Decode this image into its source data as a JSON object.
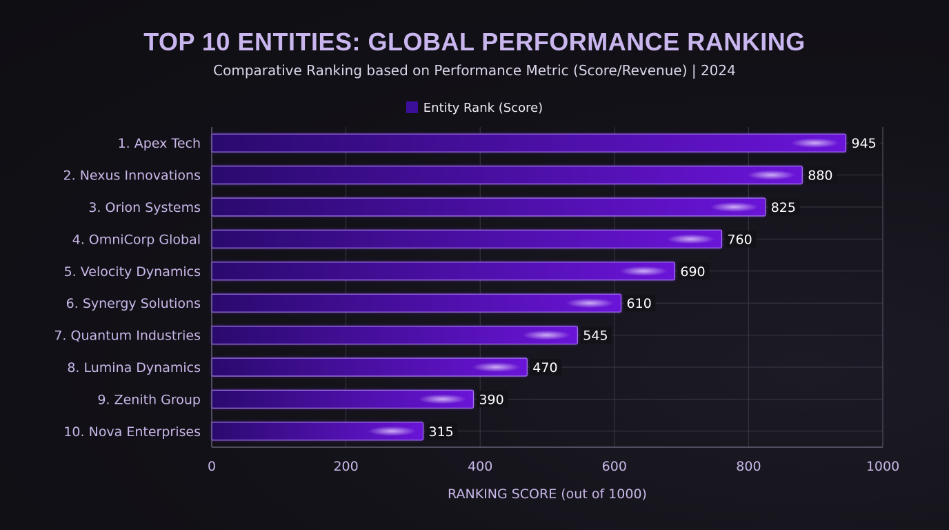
{
  "chart_data": {
    "type": "bar",
    "orientation": "horizontal",
    "title": "TOP 10 ENTITIES: GLOBAL PERFORMANCE RANKING",
    "subtitle": "Comparative Ranking based on Performance Metric (Score/Revenue) | 2024",
    "legend": {
      "entries": [
        "Entity Rank (Score)"
      ],
      "placement": "top-center"
    },
    "categories": [
      "1. Apex Tech",
      "2. Nexus Innovations",
      "3. Orion Systems",
      "4. OmniCorp Global",
      "5. Velocity Dynamics",
      "6. Synergy Solutions",
      "7. Quantum Industries",
      "8. Lumina Dynamics",
      "9. Zenith Group",
      "10. Nova Enterprises"
    ],
    "series": [
      {
        "name": "Entity Rank (Score)",
        "values": [
          945,
          880,
          825,
          760,
          690,
          610,
          545,
          470,
          390,
          315
        ]
      }
    ],
    "xlabel": "RANKING SCORE (out of 1000)",
    "ylabel": "",
    "xlim": [
      0,
      1000
    ],
    "xticks": [
      0,
      200,
      400,
      600,
      800,
      1000
    ],
    "grid": true,
    "data_labels": true,
    "colors": {
      "bar_start": "#2a0a6e",
      "bar_end": "#6a14d8",
      "bar_border": "#a97cf0",
      "title": "#c9b6ee",
      "tick_text": "#c9b8ea"
    }
  }
}
